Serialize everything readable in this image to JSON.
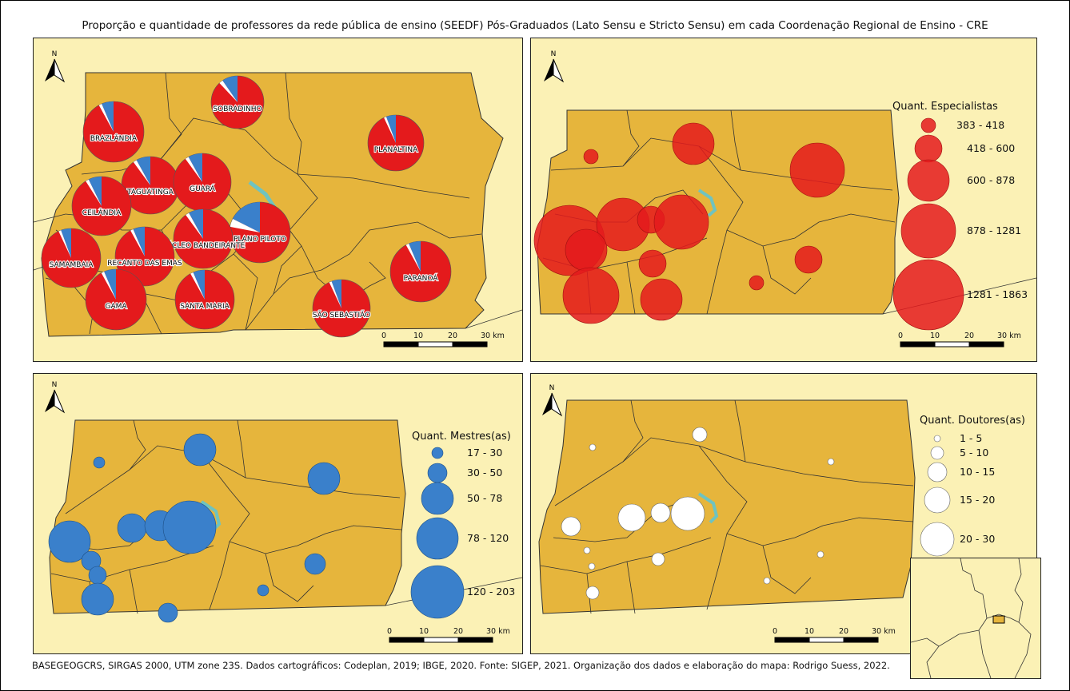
{
  "title": "Proporção e quantidade de professores da rede pública de ensino (SEEDF) Pós-Graduados (Lato Sensu e Stricto Sensu) em cada Coordenação Regional de Ensino - CRE",
  "footer": "BASEGEOGCRS, SIRGAS 2000, UTM zone 23S. Dados cartográficos: Codeplan, 2019; IBGE, 2020. Fonte: SIGEP, 2021. Organização dos dados e elaboração do mapa: Rodrigo Suess, 2022.",
  "north_label": "N",
  "scale": {
    "ticks": [
      "0",
      "10",
      "20",
      "30 km"
    ]
  },
  "colors": {
    "background": "#fbf1b5",
    "territory": "#e6b53c",
    "especialistas": "#e41a1c",
    "mestres": "#3a80cb",
    "doutores": "#ffffff",
    "water": "#6fc3c0"
  },
  "pie_panel": {
    "cres": [
      {
        "name": "SOBRADINHO",
        "share_mestres_doutores": 0.12
      },
      {
        "name": "BRAZLÂNDIA",
        "share_mestres_doutores": 0.08
      },
      {
        "name": "PLANALTINA",
        "share_mestres_doutores": 0.07
      },
      {
        "name": "TAGUATINGA",
        "share_mestres_doutores": 0.1
      },
      {
        "name": "GUARÁ",
        "share_mestres_doutores": 0.1
      },
      {
        "name": "CEILÂNDIA",
        "share_mestres_doutores": 0.09
      },
      {
        "name": "PLANO PILOTO",
        "share_mestres_doutores": 0.22
      },
      {
        "name": "NÚCLEO BANDEIRANTE",
        "share_mestres_doutores": 0.1
      },
      {
        "name": "SAMAMBAIA",
        "share_mestres_doutores": 0.07
      },
      {
        "name": "RECANTO DAS EMAS",
        "share_mestres_doutores": 0.08
      },
      {
        "name": "PARANOÁ",
        "share_mestres_doutores": 0.08
      },
      {
        "name": "GAMA",
        "share_mestres_doutores": 0.08
      },
      {
        "name": "SANTA MARIA",
        "share_mestres_doutores": 0.08
      },
      {
        "name": "SÃO SEBASTIÃO",
        "share_mestres_doutores": 0.07
      }
    ]
  },
  "especialistas": {
    "legend_title": "Quant. Especialistas",
    "classes": [
      "383 - 418",
      "418 - 600",
      "600 - 878",
      "878 - 1281",
      "1281 - 1863"
    ]
  },
  "mestres": {
    "legend_title": "Quant. Mestres(as)",
    "classes": [
      "17 - 30",
      "30 - 50",
      "50 - 78",
      "78 - 120",
      "120 - 203"
    ]
  },
  "doutores": {
    "legend_title": "Quant. Doutores(as)",
    "classes": [
      "1 - 5",
      "5 - 10",
      "10 - 15",
      "15 - 20",
      "20 - 30"
    ]
  }
}
